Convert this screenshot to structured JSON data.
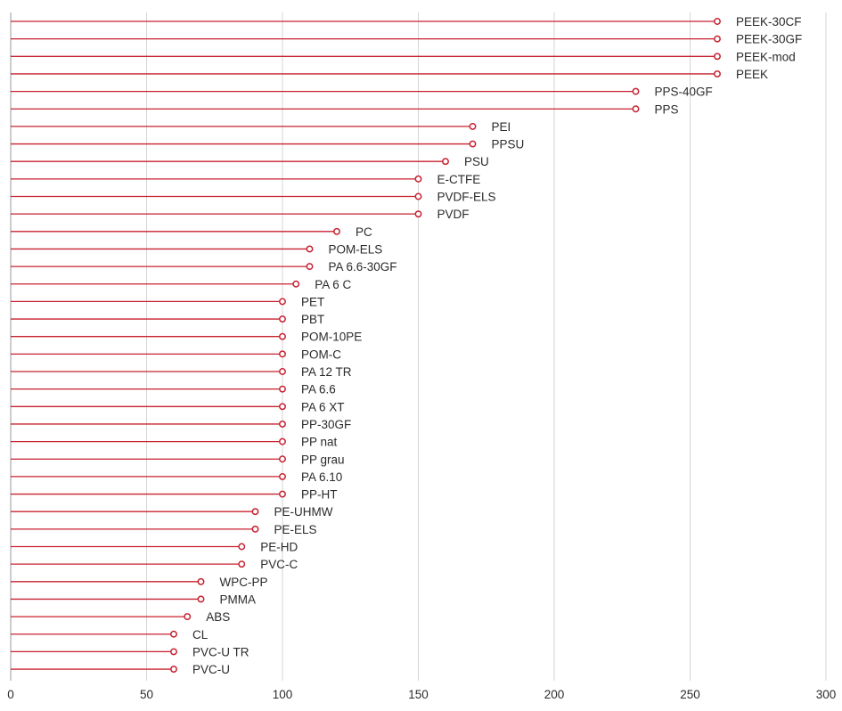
{
  "chart_data": {
    "type": "lollipop",
    "orientation": "horizontal",
    "title": "",
    "xlabel": "",
    "ylabel": "",
    "xlim": [
      0,
      300
    ],
    "x_ticks": [
      0,
      50,
      100,
      150,
      200,
      250,
      300
    ],
    "grid": true,
    "color": "#c8202f",
    "categories": [
      "PEEK-30CF",
      "PEEK-30GF",
      "PEEK-mod",
      "PEEK",
      "PPS-40GF",
      "PPS",
      "PEI",
      "PPSU",
      "PSU",
      "E-CTFE",
      "PVDF-ELS",
      "PVDF",
      "PC",
      "POM-ELS",
      "PA 6.6-30GF",
      "PA 6 C",
      "PET",
      "PBT",
      "POM-10PE",
      "POM-C",
      "PA 12 TR",
      "PA 6.6",
      "PA 6 XT",
      "PP-30GF",
      "PP nat",
      "PP grau",
      "PA 6.10",
      "PP-HT",
      "PE-UHMW",
      "PE-ELS",
      "PE-HD",
      "PVC-C",
      "WPC-PP",
      "PMMA",
      "ABS",
      "CL",
      "PVC-U TR",
      "PVC-U"
    ],
    "values": [
      260,
      260,
      260,
      260,
      230,
      230,
      170,
      170,
      160,
      150,
      150,
      150,
      120,
      110,
      110,
      105,
      100,
      100,
      100,
      100,
      100,
      100,
      100,
      100,
      100,
      100,
      100,
      100,
      90,
      90,
      85,
      85,
      70,
      70,
      65,
      60,
      60,
      60
    ]
  }
}
